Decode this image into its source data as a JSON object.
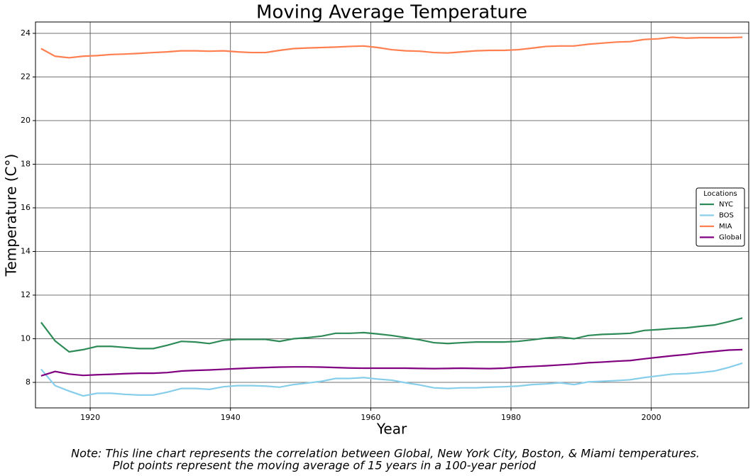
{
  "chart_data": {
    "type": "line",
    "title": "Moving Average Temperature",
    "x_label": "Year",
    "y_label": "Temperature (C°)",
    "legend_title": "Locations",
    "legend_position": "right",
    "notes": [
      "Note: This line chart represents the correlation between Global, New York City, Boston, & Miami temperatures.",
      "Plot points represent the moving average of 15 years in a 100-year period"
    ],
    "grid": true,
    "xlim": [
      1912.2,
      2013.9
    ],
    "xticks": [
      1920,
      1940,
      1960,
      1980,
      2000
    ],
    "ylim": [
      6.83,
      24.52
    ],
    "yticks": [
      8,
      10,
      12,
      14,
      16,
      18,
      20,
      22,
      24
    ],
    "x": [
      1913,
      1915,
      1917,
      1919,
      1921,
      1923,
      1925,
      1927,
      1929,
      1931,
      1933,
      1935,
      1937,
      1939,
      1941,
      1943,
      1945,
      1947,
      1949,
      1951,
      1953,
      1955,
      1957,
      1959,
      1961,
      1963,
      1965,
      1967,
      1969,
      1971,
      1973,
      1975,
      1977,
      1979,
      1981,
      1983,
      1985,
      1987,
      1989,
      1991,
      1993,
      1995,
      1997,
      1999,
      2001,
      2003,
      2005,
      2007,
      2009,
      2011,
      2013
    ],
    "series": [
      {
        "name": "NYC",
        "color": "#2e8b57",
        "values": [
          10.75,
          9.9,
          9.4,
          9.5,
          9.65,
          9.65,
          9.6,
          9.55,
          9.55,
          9.7,
          9.88,
          9.85,
          9.78,
          9.93,
          9.97,
          9.97,
          9.97,
          9.88,
          10.0,
          10.05,
          10.12,
          10.25,
          10.25,
          10.28,
          10.22,
          10.15,
          10.05,
          9.95,
          9.82,
          9.78,
          9.82,
          9.85,
          9.85,
          9.85,
          9.88,
          9.95,
          10.03,
          10.08,
          10.0,
          10.15,
          10.2,
          10.22,
          10.25,
          10.38,
          10.42,
          10.47,
          10.5,
          10.57,
          10.63,
          10.78,
          10.95
        ]
      },
      {
        "name": "BOS",
        "color": "#87ceeb",
        "values": [
          8.6,
          7.85,
          7.6,
          7.38,
          7.5,
          7.5,
          7.45,
          7.42,
          7.42,
          7.55,
          7.72,
          7.72,
          7.68,
          7.8,
          7.85,
          7.85,
          7.83,
          7.78,
          7.9,
          7.97,
          8.05,
          8.18,
          8.18,
          8.22,
          8.15,
          8.1,
          7.98,
          7.88,
          7.75,
          7.72,
          7.75,
          7.75,
          7.78,
          7.8,
          7.83,
          7.9,
          7.93,
          7.98,
          7.9,
          8.02,
          8.05,
          8.08,
          8.12,
          8.22,
          8.3,
          8.38,
          8.4,
          8.45,
          8.52,
          8.68,
          8.88
        ]
      },
      {
        "name": "MIA",
        "color": "#ff7f50",
        "values": [
          23.3,
          22.95,
          22.88,
          22.95,
          22.98,
          23.03,
          23.05,
          23.08,
          23.12,
          23.15,
          23.2,
          23.2,
          23.18,
          23.2,
          23.15,
          23.12,
          23.12,
          23.22,
          23.3,
          23.33,
          23.35,
          23.37,
          23.4,
          23.42,
          23.35,
          23.25,
          23.2,
          23.18,
          23.12,
          23.1,
          23.15,
          23.2,
          23.22,
          23.22,
          23.25,
          23.32,
          23.4,
          23.42,
          23.42,
          23.5,
          23.55,
          23.6,
          23.62,
          23.72,
          23.75,
          23.82,
          23.78,
          23.8,
          23.8,
          23.8,
          23.82
        ]
      },
      {
        "name": "Global",
        "color": "#800080",
        "values": [
          8.3,
          8.5,
          8.38,
          8.32,
          8.35,
          8.37,
          8.4,
          8.42,
          8.42,
          8.45,
          8.52,
          8.55,
          8.57,
          8.6,
          8.63,
          8.66,
          8.68,
          8.7,
          8.71,
          8.71,
          8.7,
          8.68,
          8.66,
          8.65,
          8.65,
          8.65,
          8.65,
          8.64,
          8.63,
          8.64,
          8.65,
          8.64,
          8.63,
          8.65,
          8.7,
          8.73,
          8.76,
          8.8,
          8.84,
          8.9,
          8.93,
          8.97,
          9.0,
          9.08,
          9.15,
          9.22,
          9.28,
          9.36,
          9.42,
          9.48,
          9.5
        ]
      }
    ]
  }
}
